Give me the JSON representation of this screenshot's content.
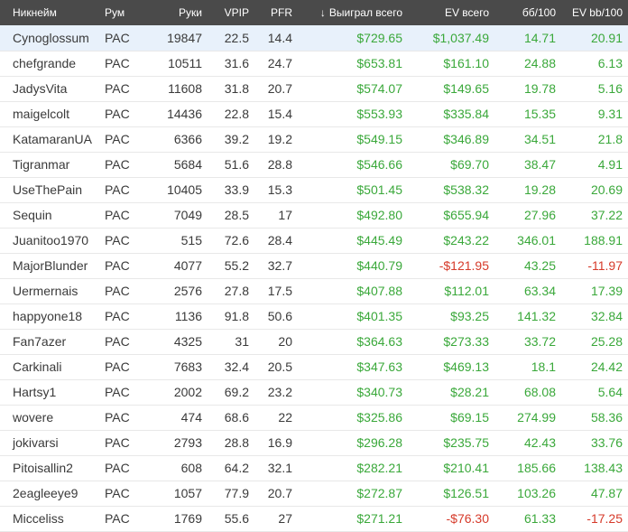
{
  "columns": {
    "nickname": "Никнейм",
    "room": "Рум",
    "hands": "Руки",
    "vpip": "VPIP",
    "pfr": "PFR",
    "won_total": "Выиграл всего",
    "ev_total": "EV всего",
    "bb100": "бб/100",
    "ev_bb100": "EV bb/100"
  },
  "sort_icon": "arrow-down-icon",
  "colors": {
    "positive": "#3aa83a",
    "negative": "#d63a2a",
    "header_bg": "#4a4a4a",
    "selected_row": "#e8f1fb"
  },
  "rows": [
    {
      "nick": "Cynoglossum",
      "room": "PAC",
      "hands": "19847",
      "vpip": "22.5",
      "pfr": "14.4",
      "won": "$729.65",
      "ev": "$1,037.49",
      "bb100": "14.71",
      "evbb100": "20.91"
    },
    {
      "nick": "chefgrande",
      "room": "PAC",
      "hands": "10511",
      "vpip": "31.6",
      "pfr": "24.7",
      "won": "$653.81",
      "ev": "$161.10",
      "bb100": "24.88",
      "evbb100": "6.13"
    },
    {
      "nick": "JadysVita",
      "room": "PAC",
      "hands": "11608",
      "vpip": "31.8",
      "pfr": "20.7",
      "won": "$574.07",
      "ev": "$149.65",
      "bb100": "19.78",
      "evbb100": "5.16"
    },
    {
      "nick": "maigelcolt",
      "room": "PAC",
      "hands": "14436",
      "vpip": "22.8",
      "pfr": "15.4",
      "won": "$553.93",
      "ev": "$335.84",
      "bb100": "15.35",
      "evbb100": "9.31"
    },
    {
      "nick": "KatamaranUA",
      "room": "PAC",
      "hands": "6366",
      "vpip": "39.2",
      "pfr": "19.2",
      "won": "$549.15",
      "ev": "$346.89",
      "bb100": "34.51",
      "evbb100": "21.8"
    },
    {
      "nick": "Tigranmar",
      "room": "PAC",
      "hands": "5684",
      "vpip": "51.6",
      "pfr": "28.8",
      "won": "$546.66",
      "ev": "$69.70",
      "bb100": "38.47",
      "evbb100": "4.91"
    },
    {
      "nick": "UseThePain",
      "room": "PAC",
      "hands": "10405",
      "vpip": "33.9",
      "pfr": "15.3",
      "won": "$501.45",
      "ev": "$538.32",
      "bb100": "19.28",
      "evbb100": "20.69"
    },
    {
      "nick": "Sequin",
      "room": "PAC",
      "hands": "7049",
      "vpip": "28.5",
      "pfr": "17",
      "won": "$492.80",
      "ev": "$655.94",
      "bb100": "27.96",
      "evbb100": "37.22"
    },
    {
      "nick": "Juanitoo1970",
      "room": "PAC",
      "hands": "515",
      "vpip": "72.6",
      "pfr": "28.4",
      "won": "$445.49",
      "ev": "$243.22",
      "bb100": "346.01",
      "evbb100": "188.91"
    },
    {
      "nick": "MajorBlunder",
      "room": "PAC",
      "hands": "4077",
      "vpip": "55.2",
      "pfr": "32.7",
      "won": "$440.79",
      "ev": "-$121.95",
      "bb100": "43.25",
      "evbb100": "-11.97"
    },
    {
      "nick": "Uermernais",
      "room": "PAC",
      "hands": "2576",
      "vpip": "27.8",
      "pfr": "17.5",
      "won": "$407.88",
      "ev": "$112.01",
      "bb100": "63.34",
      "evbb100": "17.39"
    },
    {
      "nick": "happyone18",
      "room": "PAC",
      "hands": "1136",
      "vpip": "91.8",
      "pfr": "50.6",
      "won": "$401.35",
      "ev": "$93.25",
      "bb100": "141.32",
      "evbb100": "32.84"
    },
    {
      "nick": "Fan7azer",
      "room": "PAC",
      "hands": "4325",
      "vpip": "31",
      "pfr": "20",
      "won": "$364.63",
      "ev": "$273.33",
      "bb100": "33.72",
      "evbb100": "25.28"
    },
    {
      "nick": "Carkinali",
      "room": "PAC",
      "hands": "7683",
      "vpip": "32.4",
      "pfr": "20.5",
      "won": "$347.63",
      "ev": "$469.13",
      "bb100": "18.1",
      "evbb100": "24.42"
    },
    {
      "nick": "Hartsy1",
      "room": "PAC",
      "hands": "2002",
      "vpip": "69.2",
      "pfr": "23.2",
      "won": "$340.73",
      "ev": "$28.21",
      "bb100": "68.08",
      "evbb100": "5.64"
    },
    {
      "nick": "wovere",
      "room": "PAC",
      "hands": "474",
      "vpip": "68.6",
      "pfr": "22",
      "won": "$325.86",
      "ev": "$69.15",
      "bb100": "274.99",
      "evbb100": "58.36"
    },
    {
      "nick": "jokivarsi",
      "room": "PAC",
      "hands": "2793",
      "vpip": "28.8",
      "pfr": "16.9",
      "won": "$296.28",
      "ev": "$235.75",
      "bb100": "42.43",
      "evbb100": "33.76"
    },
    {
      "nick": "Pitoisallin2",
      "room": "PAC",
      "hands": "608",
      "vpip": "64.2",
      "pfr": "32.1",
      "won": "$282.21",
      "ev": "$210.41",
      "bb100": "185.66",
      "evbb100": "138.43"
    },
    {
      "nick": "2eagleeye9",
      "room": "PAC",
      "hands": "1057",
      "vpip": "77.9",
      "pfr": "20.7",
      "won": "$272.87",
      "ev": "$126.51",
      "bb100": "103.26",
      "evbb100": "47.87"
    },
    {
      "nick": "Micceliss",
      "room": "PAC",
      "hands": "1769",
      "vpip": "55.6",
      "pfr": "27",
      "won": "$271.21",
      "ev": "-$76.30",
      "bb100": "61.33",
      "evbb100": "-17.25"
    }
  ]
}
